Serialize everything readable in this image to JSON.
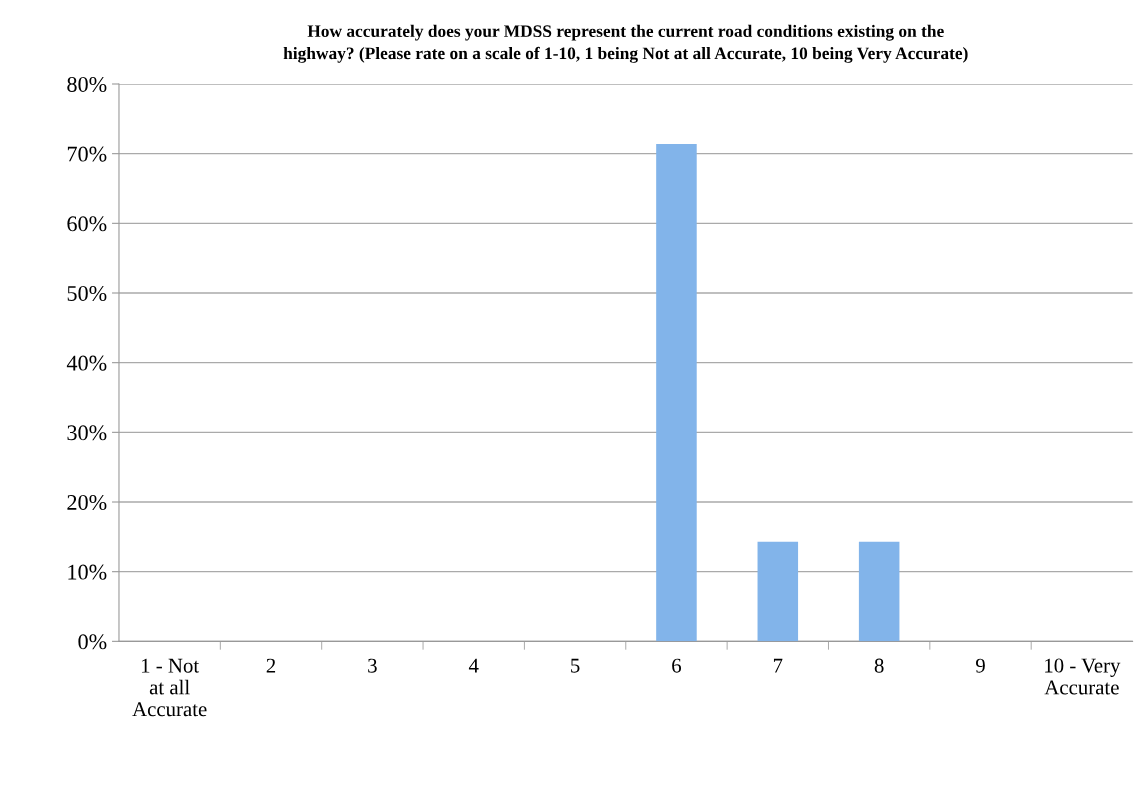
{
  "chart_data": {
    "type": "bar",
    "title": "How accurately does your MDSS represent the current road conditions existing on the\nhighway? (Please rate on a scale of 1-10, 1 being Not at all Accurate, 10 being Very Accurate)",
    "categories": [
      "1 - Not\nat all\nAccurate",
      "2",
      "3",
      "4",
      "5",
      "6",
      "7",
      "8",
      "9",
      "10 - Very\nAccurate"
    ],
    "values": [
      0,
      0,
      0,
      0,
      0,
      71.4,
      14.3,
      14.3,
      0,
      0
    ],
    "color": "#82b4ea",
    "ylim": [
      0,
      80
    ],
    "yticks": [
      {
        "value": 0,
        "label": "0%"
      },
      {
        "value": 10,
        "label": "10%"
      },
      {
        "value": 20,
        "label": "20%"
      },
      {
        "value": 30,
        "label": "30%"
      },
      {
        "value": 40,
        "label": "40%"
      },
      {
        "value": 50,
        "label": "50%"
      },
      {
        "value": 60,
        "label": "60%"
      },
      {
        "value": 70,
        "label": "70%"
      },
      {
        "value": 80,
        "label": "80%"
      }
    ],
    "grid": "y"
  }
}
